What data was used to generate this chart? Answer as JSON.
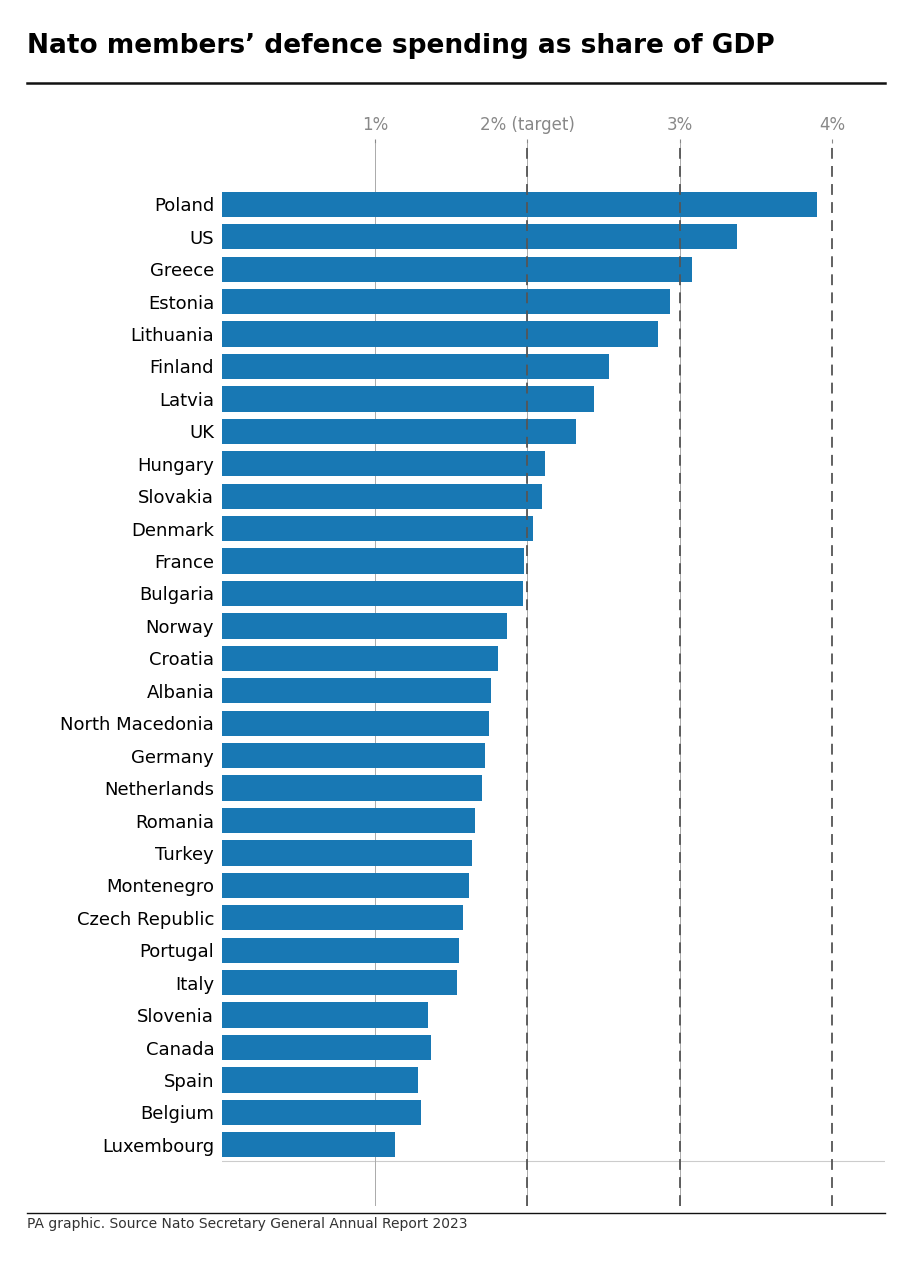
{
  "title": "Nato members’ defence spending as share of GDP",
  "source": "PA graphic. Source Nato Secretary General Annual Report 2023",
  "bar_color": "#1878b4",
  "background_color": "#ffffff",
  "categories": [
    "Poland",
    "US",
    "Greece",
    "Estonia",
    "Lithuania",
    "Finland",
    "Latvia",
    "UK",
    "Hungary",
    "Slovakia",
    "Denmark",
    "France",
    "Bulgaria",
    "Norway",
    "Croatia",
    "Albania",
    "North Macedonia",
    "Germany",
    "Netherlands",
    "Romania",
    "Turkey",
    "Montenegro",
    "Czech Republic",
    "Portugal",
    "Italy",
    "Slovenia",
    "Canada",
    "Spain",
    "Belgium",
    "Luxembourg"
  ],
  "values": [
    3.9,
    3.38,
    3.08,
    2.94,
    2.86,
    2.54,
    2.44,
    2.32,
    2.12,
    2.1,
    2.04,
    1.98,
    1.97,
    1.87,
    1.81,
    1.76,
    1.75,
    1.72,
    1.7,
    1.66,
    1.64,
    1.62,
    1.58,
    1.55,
    1.54,
    1.35,
    1.37,
    1.28,
    1.3,
    1.13
  ],
  "xlim_max": 4.35,
  "dashed_lines": [
    2.0,
    3.0,
    4.0
  ],
  "xtick_positions": [
    1.0,
    2.0,
    3.0,
    4.0
  ],
  "xtick_labels": [
    "1%",
    "2% (target)",
    "3%",
    "4%"
  ],
  "title_fontsize": 19,
  "label_fontsize": 13,
  "xtick_fontsize": 12,
  "source_fontsize": 10,
  "bar_height": 0.78
}
